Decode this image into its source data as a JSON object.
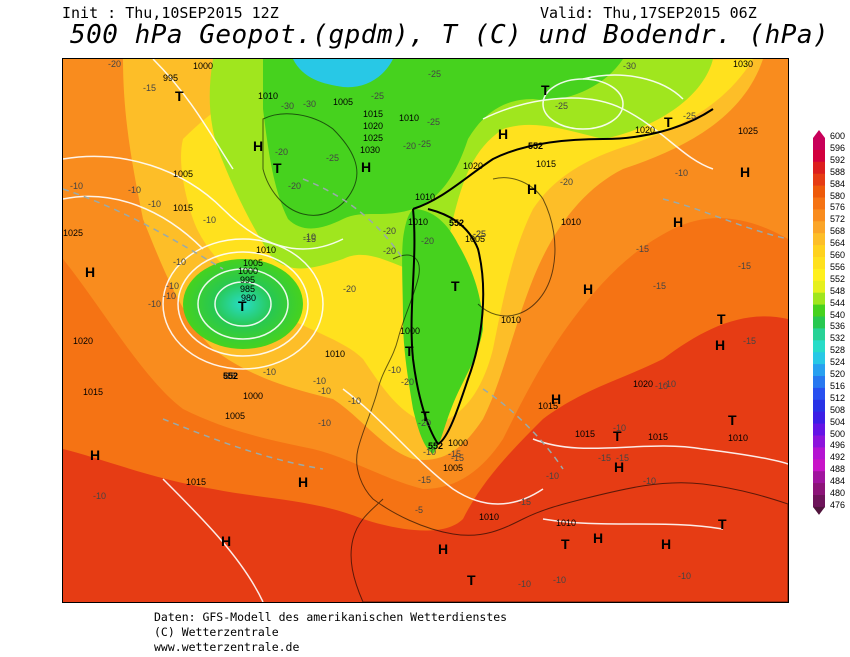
{
  "header": {
    "init": "Init : Thu,10SEP2015 12Z",
    "valid": "Valid: Thu,17SEP2015 06Z",
    "title": "500 hPa Geopot.(gpdm), T (C) und Bodendr. (hPa)"
  },
  "legend": {
    "levels": [
      "600",
      "596",
      "592",
      "588",
      "584",
      "580",
      "576",
      "572",
      "568",
      "564",
      "560",
      "556",
      "552",
      "548",
      "544",
      "540",
      "536",
      "532",
      "528",
      "524",
      "520",
      "516",
      "512",
      "508",
      "504",
      "500",
      "496",
      "492",
      "488",
      "484",
      "480",
      "476"
    ],
    "colors": [
      "#c8005a",
      "#d2003c",
      "#dc1e1e",
      "#e63c14",
      "#ee5a0a",
      "#f57314",
      "#f98c1e",
      "#fba528",
      "#fdbe28",
      "#ffd21e",
      "#ffe11e",
      "#fff01e",
      "#e6f01e",
      "#a0e61e",
      "#46d21e",
      "#28c850",
      "#28d296",
      "#28dcc8",
      "#28c8e6",
      "#28a0f0",
      "#2878f0",
      "#2850f0",
      "#2832e6",
      "#3c1ee6",
      "#6414e6",
      "#8c14dc",
      "#b414d2",
      "#c814c8",
      "#a0149e",
      "#8c1478",
      "#6e145a",
      "#50143c"
    ]
  },
  "map": {
    "pressure_labels": [
      "1000",
      "995",
      "1010",
      "1005",
      "1015",
      "1020",
      "1025",
      "1030",
      "1005",
      "1015",
      "1010",
      "1005",
      "1025",
      "1010",
      "1000",
      "995",
      "985",
      "980",
      "1020",
      "1010",
      "1015",
      "1000",
      "1005",
      "1010",
      "1020",
      "1030",
      "1020",
      "1025",
      "1015",
      "1010",
      "1015",
      "1015",
      "1010",
      "1020",
      "1015",
      "1000",
      "1005",
      "1015",
      "1010",
      "1010",
      "1010",
      "1005",
      "1010",
      "1000"
    ],
    "temp_labels": [
      "-20",
      "-15",
      "-25",
      "-30",
      "-30",
      "-25",
      "-20",
      "-20",
      "-25",
      "-25",
      "-25",
      "-25",
      "-10",
      "-10",
      "-10",
      "-10",
      "-10",
      "-15",
      "-20",
      "-20",
      "-20",
      "-25",
      "-20",
      "-15",
      "-10",
      "-15",
      "-10",
      "-15",
      "-10",
      "-10",
      "-10",
      "-15",
      "-10",
      "-15",
      "-10",
      "-20",
      "-20",
      "-15",
      "-15",
      "-10",
      "-15",
      "-10",
      "-10",
      "-5",
      "-10",
      "-10",
      "-10",
      "-10",
      "-10",
      "-10",
      "-15",
      "-10",
      "-10",
      "-10",
      "-15",
      "-20",
      "-25",
      "-30",
      "-25",
      "-20",
      "-10",
      "-10",
      "-15",
      "-15"
    ],
    "geopot_labels": [
      "552",
      "552",
      "552",
      "552"
    ],
    "high_symbol": "H",
    "low_symbol": "T"
  },
  "footer": {
    "line1": "Daten: GFS-Modell des amerikanischen Wetterdienstes",
    "line2": "(C) Wetterzentrale",
    "line3": "www.wetterzentrale.de"
  }
}
